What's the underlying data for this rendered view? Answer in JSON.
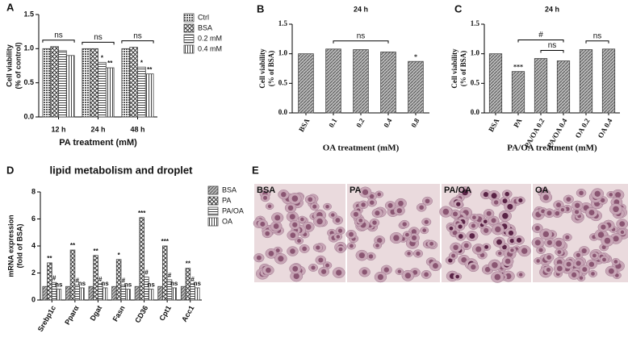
{
  "chart_data": [
    {
      "type": "bar",
      "panel_label": "A",
      "ylabel": [
        "Cell viability",
        "(% of control)"
      ],
      "xlabel": "PA treatment (mM)",
      "categories": [
        "12 h",
        "24 h",
        "48 h"
      ],
      "series": [
        {
          "name": "Ctrl",
          "color": "#444444",
          "pattern": "dots",
          "values": [
            1.0,
            1.0,
            1.0
          ],
          "significance": [
            null,
            null,
            null
          ]
        },
        {
          "name": "BSA",
          "color": "#444444",
          "pattern": "cross",
          "values": [
            1.03,
            1.0,
            1.02
          ],
          "significance": [
            null,
            null,
            null
          ]
        },
        {
          "name": "0.2 mM",
          "color": "#444444",
          "pattern": "horiz",
          "values": [
            0.97,
            0.8,
            0.73
          ],
          "significance": [
            null,
            "*",
            "*"
          ]
        },
        {
          "name": "0.4 mM",
          "color": "#444444",
          "pattern": "vert",
          "values": [
            0.9,
            0.72,
            0.63
          ],
          "significance": [
            null,
            "**",
            "**"
          ]
        }
      ],
      "group_brackets": [
        "ns",
        "ns",
        "ns"
      ],
      "ylim": [
        0,
        1.5
      ],
      "yticks": [
        {
          "value": 0,
          "label": "0.0"
        },
        0.5,
        {
          "value": 1,
          "label": "1.0"
        },
        1.5
      ]
    },
    {
      "type": "bar",
      "panel_label": "B",
      "title": "24 h",
      "ylabel": [
        "Cell viability",
        "(% of BSA)"
      ],
      "xlabel": "OA treatment (mM)",
      "categories": [
        "BSA",
        "0.1",
        "0.2",
        "0.4",
        "0.8"
      ],
      "values": [
        1.0,
        1.08,
        1.07,
        1.03,
        0.87
      ],
      "significance": [
        null,
        null,
        null,
        null,
        "*"
      ],
      "pattern": "hatch",
      "color": "#444444",
      "brackets": [
        {
          "label": "ns",
          "from": "0.1",
          "to": "0.4"
        }
      ],
      "ylim": [
        0,
        1.5
      ],
      "yticks": [
        {
          "value": 0,
          "label": "0.0"
        },
        0.5,
        {
          "value": 1,
          "label": "1.0"
        },
        1.5
      ]
    },
    {
      "type": "bar",
      "panel_label": "C",
      "title": "24 h",
      "ylabel": [
        "Cell viability",
        "(% of BSA)"
      ],
      "xlabel": "PA/OA treatment (mM)",
      "categories": [
        "BSA",
        "PA",
        "PA/OA 0.2",
        "PA/OA 0.4",
        "OA 0.2",
        "OA 0.4"
      ],
      "values": [
        1.0,
        0.7,
        0.92,
        0.88,
        1.07,
        1.08
      ],
      "significance": [
        null,
        "***",
        null,
        null,
        null,
        null
      ],
      "pattern": "hatch",
      "color": "#444444",
      "brackets": [
        {
          "label": "ns",
          "from": "PA/OA 0.2",
          "to": "PA/OA 0.4"
        },
        {
          "label": "#",
          "from": "PA",
          "to": "PA/OA 0.4"
        },
        {
          "label": "ns",
          "from": "OA 0.2",
          "to": "OA 0.4"
        }
      ],
      "ylim": [
        0,
        1.5
      ],
      "yticks": [
        {
          "value": 0,
          "label": "0.0"
        },
        0.5,
        {
          "value": 1,
          "label": "1.0"
        },
        1.5
      ]
    },
    {
      "type": "bar",
      "panel_label": "D",
      "title": "lipid metabolism and droplet",
      "ylabel": [
        "mRNA expression",
        "(fold of BSA)"
      ],
      "categories": [
        "Srebp1c",
        "Pparα",
        "Dgat",
        "Fasn",
        "CD36",
        "Cpt1",
        "Acc1"
      ],
      "series": [
        {
          "name": "BSA",
          "color": "#444444",
          "pattern": "hatch",
          "values": [
            1,
            1,
            1,
            1,
            1,
            1,
            1
          ],
          "significance": [
            null,
            null,
            null,
            null,
            null,
            null,
            null
          ]
        },
        {
          "name": "PA",
          "color": "#444444",
          "pattern": "cross",
          "values": [
            2.75,
            3.7,
            3.3,
            3.0,
            6.1,
            4.0,
            2.35
          ],
          "significance": [
            "**",
            "**",
            "**",
            "*",
            "***",
            "***",
            "**"
          ]
        },
        {
          "name": "PA/OA",
          "color": "#444444",
          "pattern": "horiz",
          "values": [
            1.3,
            1.1,
            1.2,
            1.1,
            1.7,
            1.5,
            1.2
          ],
          "significance": [
            "#",
            "#",
            "#",
            "#",
            "#",
            "#",
            "#"
          ]
        },
        {
          "name": "OA",
          "color": "#444444",
          "pattern": "vert",
          "values": [
            0.8,
            0.9,
            0.9,
            0.8,
            0.8,
            0.9,
            0.9
          ],
          "significance": [
            "ns",
            "ns",
            "ns",
            "ns",
            "ns",
            "ns",
            "ns"
          ]
        }
      ],
      "ylim": [
        0,
        8
      ],
      "yticks": [
        0,
        2,
        4,
        6,
        8
      ]
    }
  ],
  "image_panel": {
    "panel_label": "E",
    "captions": [
      "BSA",
      "PA",
      "PA/OA",
      "OA"
    ]
  }
}
